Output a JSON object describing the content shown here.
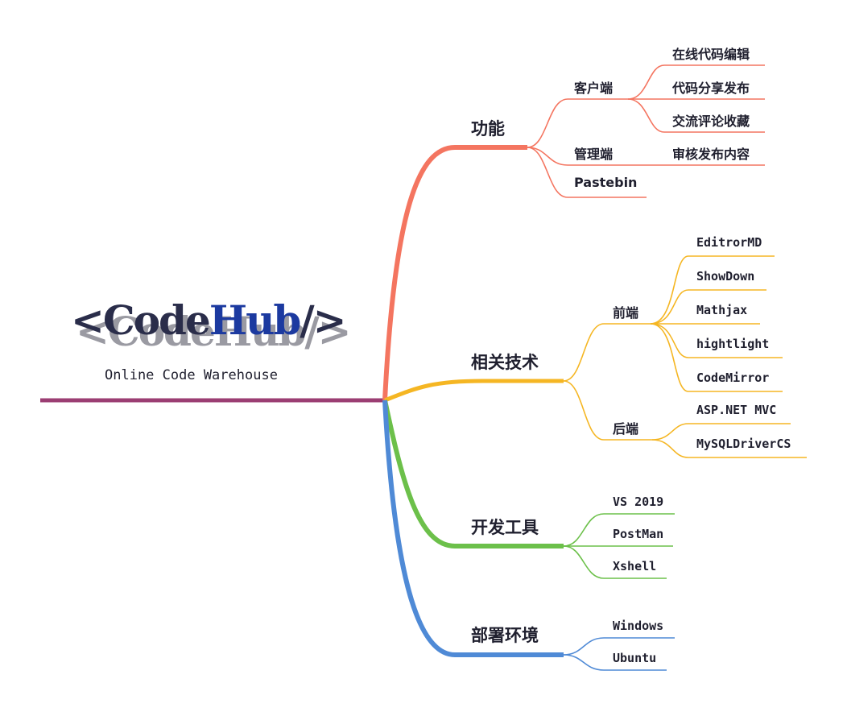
{
  "logo": {
    "lt": "<",
    "code": "Code",
    "hub": "Hub",
    "slash_gt": "/>",
    "subtitle": "Online Code Warehouse"
  },
  "branches": {
    "features": {
      "label": "功能",
      "color": "#f47560",
      "client": {
        "label": "客户端",
        "items": [
          "在线代码编辑",
          "代码分享发布",
          "交流评论收藏"
        ]
      },
      "admin": {
        "label": "管理端",
        "items": [
          "审核发布内容"
        ]
      },
      "pastebin": {
        "label": "Pastebin"
      }
    },
    "tech": {
      "label": "相关技术",
      "color": "#f5b623",
      "frontend": {
        "label": "前端",
        "items": [
          "EditrorMD",
          "ShowDown",
          "Mathjax",
          "hightlight",
          "CodeMirror"
        ]
      },
      "backend": {
        "label": "后端",
        "items": [
          "ASP.NET MVC",
          "MySQLDriverCS"
        ]
      }
    },
    "tools": {
      "label": "开发工具",
      "color": "#6cc04a",
      "items": [
        "VS 2019",
        "PostMan",
        "Xshell"
      ]
    },
    "deploy": {
      "label": "部署环境",
      "color": "#4f8ad6",
      "items": [
        "Windows",
        "Ubuntu"
      ]
    }
  },
  "colors": {
    "root_line": "#9b3e73"
  }
}
